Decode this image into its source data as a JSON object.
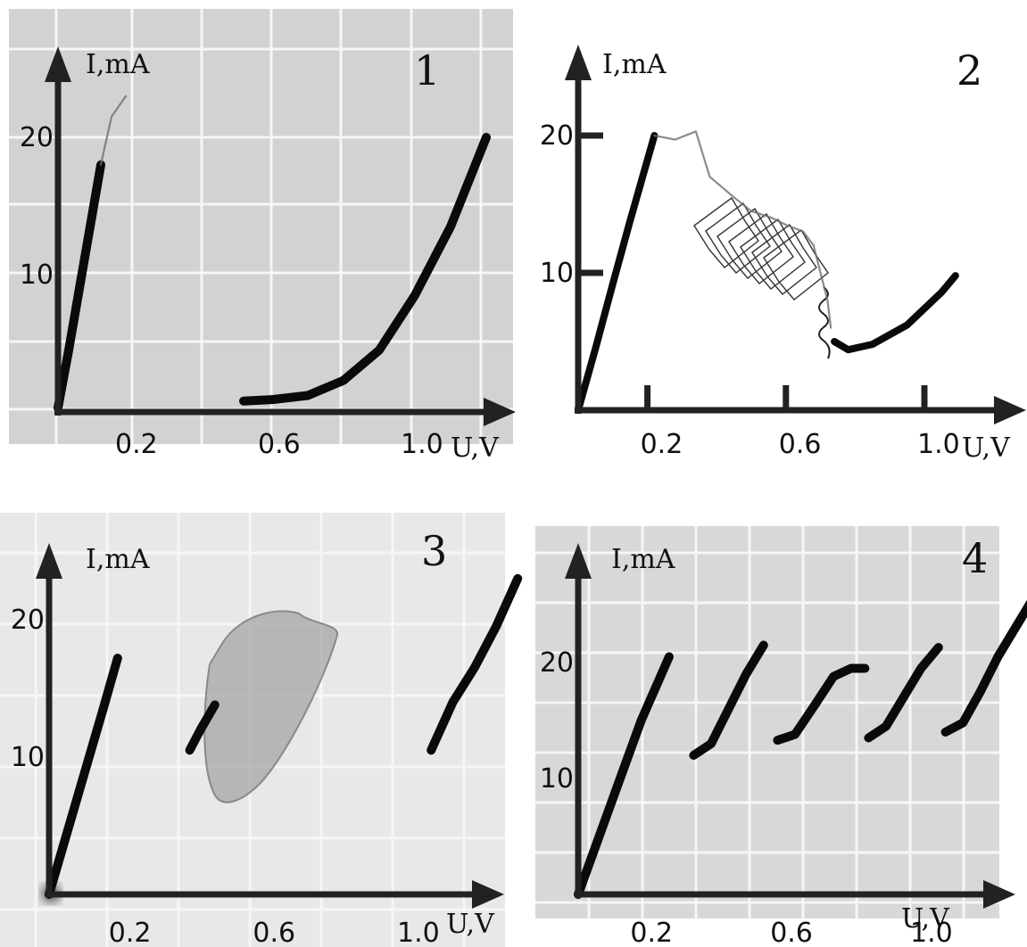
{
  "chart_data": [
    {
      "type": "line",
      "panel_label": "1",
      "xlabel": "U,V",
      "ylabel": "I,mA",
      "xlim": [
        0,
        1.3
      ],
      "ylim": [
        0,
        25
      ],
      "x_ticks": [
        "0.2",
        "0.6",
        "1.0"
      ],
      "y_ticks": [
        "10",
        "20"
      ],
      "grid": true,
      "background": "#d2d2d2",
      "series": [
        {
          "x": [
            0.0,
            0.03,
            0.06,
            0.09,
            0.12
          ],
          "y": [
            0.3,
            4.5,
            9.0,
            13.5,
            18.0
          ],
          "weight": "heavy"
        },
        {
          "x": [
            0.12,
            0.15,
            0.19
          ],
          "y": [
            18.0,
            21.5,
            23.0
          ],
          "weight": "faint"
        },
        {
          "x": [
            0.52,
            0.6,
            0.7,
            0.8,
            0.9,
            1.0,
            1.1,
            1.2
          ],
          "y": [
            0.8,
            0.9,
            1.2,
            2.3,
            4.5,
            8.5,
            13.5,
            20.0
          ],
          "weight": "heavy"
        }
      ]
    },
    {
      "type": "line",
      "panel_label": "2",
      "xlabel": "U,V",
      "ylabel": "I,mA",
      "xlim": [
        0,
        1.3
      ],
      "ylim": [
        0,
        25
      ],
      "x_ticks": [
        "0.2",
        "0.6",
        "1.0"
      ],
      "y_ticks": [
        "10",
        "20"
      ],
      "grid": false,
      "background": "#ffffff",
      "series": [
        {
          "x": [
            0.0,
            0.05,
            0.1,
            0.15,
            0.22
          ],
          "y": [
            0.0,
            4.5,
            9.2,
            13.8,
            20.0
          ],
          "weight": "heavy"
        },
        {
          "x": [
            0.22,
            0.28,
            0.34,
            0.38,
            0.45,
            0.5,
            0.56,
            0.6,
            0.65,
            0.68,
            0.7,
            0.72,
            0.73
          ],
          "y": [
            20.0,
            19.7,
            20.3,
            17.0,
            15.5,
            14.5,
            14.0,
            13.5,
            13.0,
            12.0,
            10.0,
            8.0,
            6.0
          ],
          "weight": "faint"
        },
        {
          "x": [
            0.74,
            0.78,
            0.85,
            0.95,
            1.05,
            1.09
          ],
          "y": [
            5.0,
            4.4,
            4.8,
            6.2,
            8.6,
            9.8
          ],
          "weight": "heavy"
        }
      ]
    },
    {
      "type": "line",
      "panel_label": "3",
      "xlabel": "U,V",
      "ylabel": "I,mA",
      "xlim": [
        0,
        1.3
      ],
      "ylim": [
        0,
        25
      ],
      "x_ticks": [
        "0.2",
        "0.6",
        "1.0"
      ],
      "y_ticks": [
        "10",
        "20"
      ],
      "grid": true,
      "background": "#e8e8e8",
      "series": [
        {
          "x": [
            0.0,
            0.05,
            0.1,
            0.15,
            0.19
          ],
          "y": [
            0.0,
            4.5,
            9.0,
            13.5,
            17.2
          ],
          "weight": "heavy"
        },
        {
          "x": [
            0.39,
            0.42,
            0.46
          ],
          "y": [
            10.5,
            12.0,
            13.8
          ],
          "weight": "heavy"
        },
        {
          "x": [
            1.06,
            1.12,
            1.18,
            1.24,
            1.3
          ],
          "y": [
            10.5,
            14.0,
            16.5,
            19.5,
            23.0
          ],
          "weight": "heavy"
        }
      ]
    },
    {
      "type": "line",
      "panel_label": "4",
      "xlabel": "U,V",
      "ylabel": "I,mA",
      "xlim": [
        0,
        1.3
      ],
      "ylim": [
        0,
        30
      ],
      "x_ticks": [
        "0.2",
        "0.6",
        "1.0"
      ],
      "y_ticks": [
        "10",
        "20"
      ],
      "grid": true,
      "background": "#d8d8d8",
      "series": [
        {
          "x": [
            0.0,
            0.06,
            0.12,
            0.18,
            0.26
          ],
          "y": [
            0.0,
            5.0,
            10.0,
            15.0,
            20.5
          ],
          "weight": "heavy"
        },
        {
          "x": [
            0.33,
            0.38,
            0.43,
            0.48,
            0.53
          ],
          "y": [
            12.0,
            13.0,
            16.0,
            19.0,
            21.5
          ],
          "weight": "heavy"
        },
        {
          "x": [
            0.57,
            0.62,
            0.68,
            0.73,
            0.78,
            0.82
          ],
          "y": [
            13.3,
            13.8,
            16.5,
            18.8,
            19.5,
            19.5
          ],
          "weight": "heavy"
        },
        {
          "x": [
            0.83,
            0.88,
            0.93,
            0.98,
            1.03
          ],
          "y": [
            13.5,
            14.5,
            17.0,
            19.5,
            21.3
          ],
          "weight": "heavy"
        },
        {
          "x": [
            1.05,
            1.1,
            1.15,
            1.2,
            1.25,
            1.3
          ],
          "y": [
            14.0,
            14.8,
            17.5,
            20.5,
            23.0,
            25.5
          ],
          "weight": "heavy"
        }
      ]
    }
  ]
}
